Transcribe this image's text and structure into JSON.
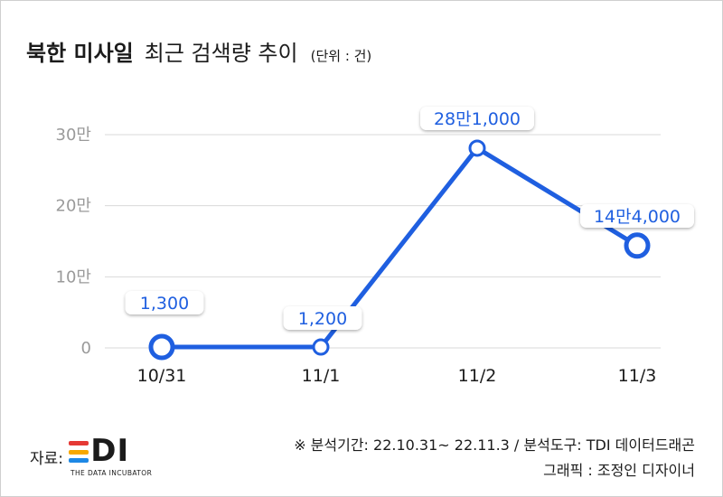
{
  "header": {
    "title_main": "북한 미사일",
    "title_rest": "최근 검색량 추이",
    "unit": "(단위 : 건)"
  },
  "chart_data": {
    "type": "line",
    "categories": [
      "10/31",
      "11/1",
      "11/2",
      "11/3"
    ],
    "values": [
      1300,
      1200,
      281000,
      144000
    ],
    "value_labels": [
      "1,300",
      "1,200",
      "28만1,000",
      "14만4,000"
    ],
    "ylim": [
      0,
      300000
    ],
    "yticks": [
      {
        "value": 0,
        "label": "0"
      },
      {
        "value": 100000,
        "label": "10만"
      },
      {
        "value": 200000,
        "label": "20만"
      },
      {
        "value": 300000,
        "label": "30만"
      }
    ],
    "grid": true,
    "colors": {
      "line": "#1f5fe0",
      "grid": "#d9d9d9",
      "tick_text": "#9a9a9a"
    }
  },
  "footer": {
    "source_label": "자료:",
    "logo_text": "TDI",
    "logo_subtitle": "THE DATA INCUBATOR",
    "logo_colors": [
      "#e53935",
      "#f7a800",
      "#1e88e5"
    ],
    "analysis_note": "※ 분석기간: 22.10.31~ 22.11.3 / 분석도구: TDI 데이터드래곤",
    "graphic_credit": "그래픽 : 조정인 디자이너"
  }
}
